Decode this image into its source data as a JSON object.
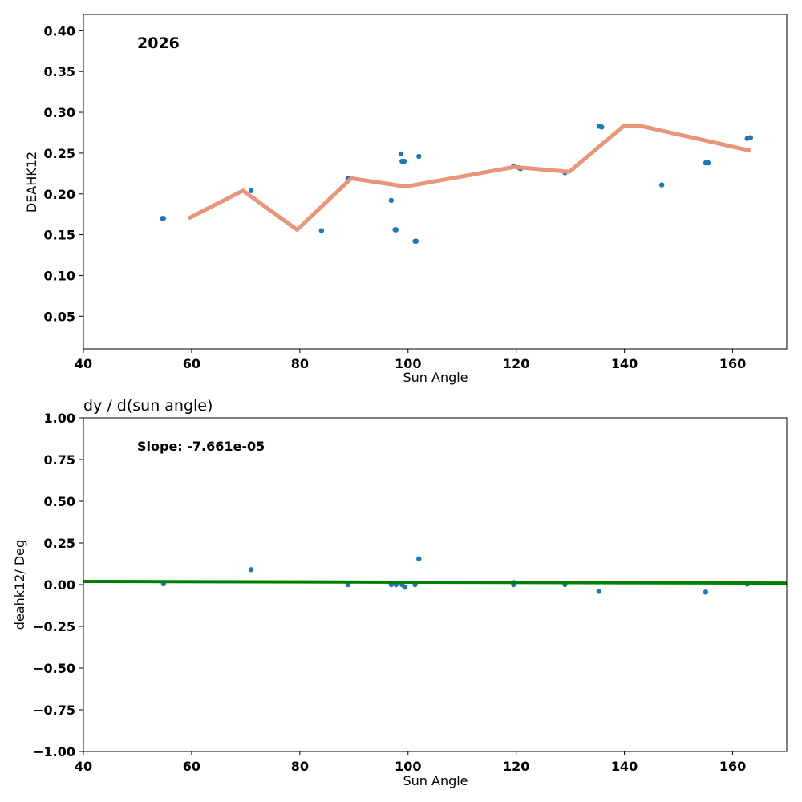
{
  "chart_data": [
    {
      "type": "scatter",
      "title": "",
      "annotation": "2026",
      "xlabel": "Sun Angle",
      "ylabel": "DEAHK12",
      "xlim": [
        40,
        170
      ],
      "ylim": [
        0.01,
        0.42
      ],
      "xticks": [
        40,
        60,
        80,
        100,
        120,
        140,
        160
      ],
      "yticks": [
        0.05,
        0.1,
        0.15,
        0.2,
        0.25,
        0.3,
        0.35,
        0.4
      ],
      "grid": false,
      "points_color": "#1f77b4",
      "points": [
        [
          54.6,
          0.17
        ],
        [
          54.8,
          0.17
        ],
        [
          71.0,
          0.204
        ],
        [
          84.0,
          0.155
        ],
        [
          88.9,
          0.219
        ],
        [
          96.9,
          0.192
        ],
        [
          97.6,
          0.156
        ],
        [
          97.8,
          0.156
        ],
        [
          98.7,
          0.249
        ],
        [
          98.9,
          0.24
        ],
        [
          99.3,
          0.24
        ],
        [
          101.3,
          0.142
        ],
        [
          101.5,
          0.142
        ],
        [
          102.0,
          0.246
        ],
        [
          119.5,
          0.234
        ],
        [
          120.5,
          0.232
        ],
        [
          120.8,
          0.231
        ],
        [
          129.0,
          0.226
        ],
        [
          135.3,
          0.283
        ],
        [
          135.8,
          0.282
        ],
        [
          146.9,
          0.211
        ],
        [
          155.0,
          0.238
        ],
        [
          155.5,
          0.238
        ],
        [
          162.7,
          0.268
        ],
        [
          163.3,
          0.269
        ]
      ],
      "line_color": "#e8967a",
      "line": [
        [
          59.4,
          0.17
        ],
        [
          69.5,
          0.204
        ],
        [
          79.5,
          0.156
        ],
        [
          89.5,
          0.219
        ],
        [
          99.6,
          0.209
        ],
        [
          119.7,
          0.233
        ],
        [
          129.8,
          0.227
        ],
        [
          139.8,
          0.283
        ],
        [
          143.2,
          0.283
        ],
        [
          163.3,
          0.253
        ]
      ]
    },
    {
      "type": "scatter",
      "title": "dy / d(sun angle)",
      "annotation": "Slope: -7.661e-05",
      "xlabel": "Sun Angle",
      "ylabel": "deahk12/ Deg",
      "xlim": [
        40,
        170
      ],
      "ylim": [
        -1.0,
        1.0
      ],
      "xticks": [
        40,
        60,
        80,
        100,
        120,
        140,
        160
      ],
      "yticks": [
        -1.0,
        -0.75,
        -0.5,
        -0.25,
        0.0,
        0.25,
        0.5,
        0.75,
        1.0
      ],
      "grid": false,
      "points_color": "#1f77b4",
      "points": [
        [
          54.8,
          0.005
        ],
        [
          71.0,
          0.09
        ],
        [
          88.9,
          0.0
        ],
        [
          96.9,
          0.0
        ],
        [
          97.8,
          0.0
        ],
        [
          98.9,
          0.0
        ],
        [
          99.4,
          -0.015
        ],
        [
          101.3,
          0.0
        ],
        [
          102.0,
          0.155
        ],
        [
          119.5,
          0.0
        ],
        [
          119.6,
          0.012
        ],
        [
          129.0,
          0.0
        ],
        [
          135.3,
          -0.04
        ],
        [
          155.0,
          -0.045
        ],
        [
          162.7,
          0.003
        ]
      ],
      "line_color": "#008000",
      "line": [
        [
          40,
          0.019
        ],
        [
          170,
          0.009
        ]
      ]
    }
  ]
}
